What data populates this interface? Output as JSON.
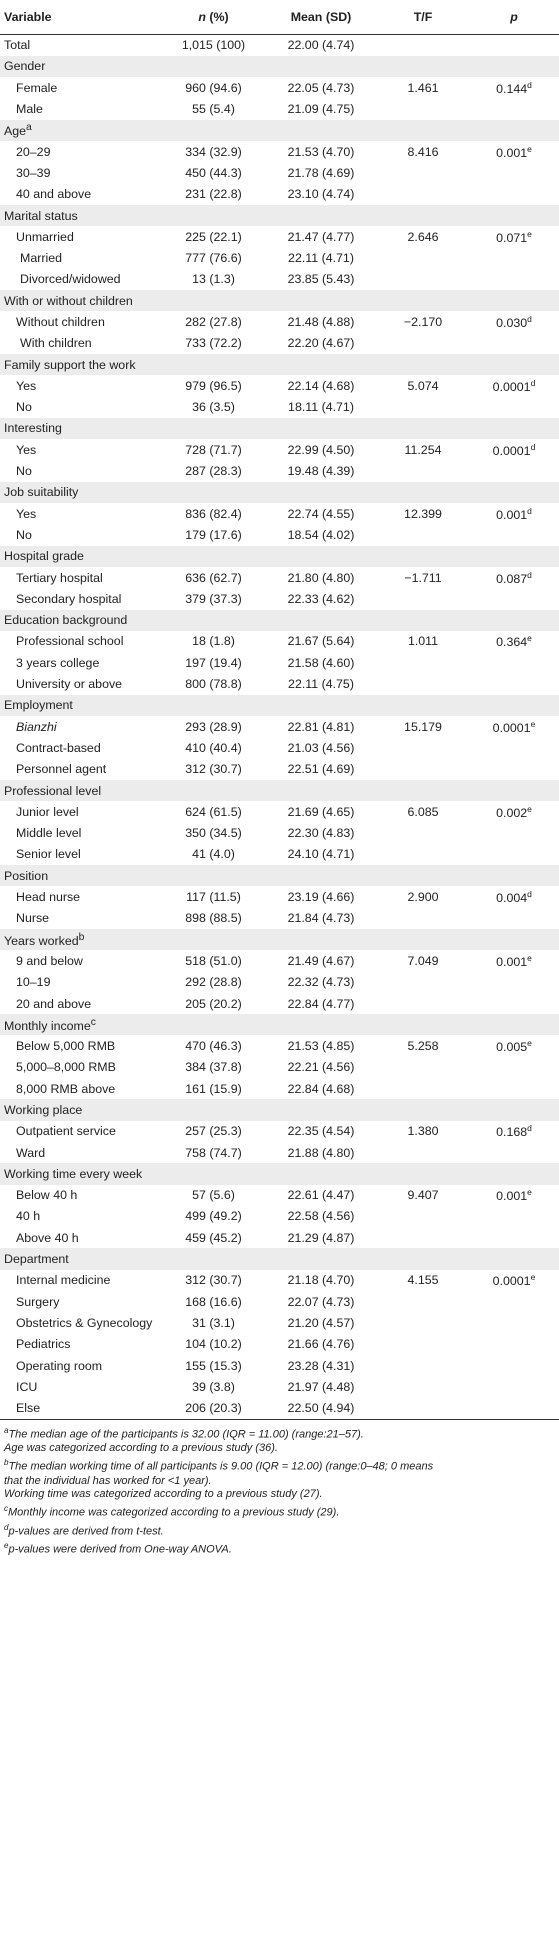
{
  "headers": [
    "Variable",
    "n (%)",
    "Mean (SD)",
    "T/F",
    "p"
  ],
  "rows": [
    {
      "label": "Total",
      "n": "1,015 (100)",
      "mean": "22.00 (4.74)",
      "tf": "",
      "p": "",
      "kind": "first"
    },
    {
      "label": "Gender",
      "kind": "group"
    },
    {
      "label": "Female",
      "n": "960 (94.6)",
      "mean": "22.05 (4.73)",
      "tf": "1.461",
      "p": "0.144",
      "sup": "d",
      "kind": "sub"
    },
    {
      "label": "Male",
      "n": "55 (5.4)",
      "mean": "21.09 (4.75)",
      "tf": "",
      "p": "",
      "kind": "sub"
    },
    {
      "label": "Age",
      "labelsup": "a",
      "kind": "group"
    },
    {
      "label": "20–29",
      "n": "334 (32.9)",
      "mean": "21.53 (4.70)",
      "tf": "8.416",
      "p": "0.001",
      "sup": "e",
      "kind": "sub"
    },
    {
      "label": "30–39",
      "n": "450 (44.3)",
      "mean": "21.78 (4.69)",
      "tf": "",
      "p": "",
      "kind": "sub"
    },
    {
      "label": "40 and above",
      "n": "231 (22.8)",
      "mean": "23.10 (4.74)",
      "tf": "",
      "p": "",
      "kind": "sub"
    },
    {
      "label": "Marital status",
      "kind": "group"
    },
    {
      "label": "Unmarried",
      "n": "225 (22.1)",
      "mean": "21.47 (4.77)",
      "tf": "2.646",
      "p": "0.071",
      "sup": "e",
      "kind": "sub"
    },
    {
      "label": "Married",
      "n": "777 (76.6)",
      "mean": "22.11 (4.71)",
      "tf": "",
      "p": "",
      "kind": "sub alt"
    },
    {
      "label": "Divorced/widowed",
      "n": "13 (1.3)",
      "mean": "23.85 (5.43)",
      "tf": "",
      "p": "",
      "kind": "sub alt"
    },
    {
      "label": "With or without children",
      "kind": "group"
    },
    {
      "label": "Without children",
      "n": "282 (27.8)",
      "mean": "21.48 (4.88)",
      "tf": "−2.170",
      "p": "0.030",
      "sup": "d",
      "kind": "sub"
    },
    {
      "label": "With children",
      "n": "733 (72.2)",
      "mean": "22.20 (4.67)",
      "tf": "",
      "p": "",
      "kind": "sub alt"
    },
    {
      "label": "Family support the work",
      "kind": "group"
    },
    {
      "label": "Yes",
      "n": "979 (96.5)",
      "mean": "22.14 (4.68)",
      "tf": "5.074",
      "p": "0.0001",
      "sup": "d",
      "kind": "sub"
    },
    {
      "label": "No",
      "n": "36 (3.5)",
      "mean": "18.11 (4.71)",
      "tf": "",
      "p": "",
      "kind": "sub"
    },
    {
      "label": "Interesting",
      "kind": "group"
    },
    {
      "label": "Yes",
      "n": "728 (71.7)",
      "mean": "22.99 (4.50)",
      "tf": "11.254",
      "p": "0.0001",
      "sup": "d",
      "kind": "sub"
    },
    {
      "label": "No",
      "n": "287 (28.3)",
      "mean": "19.48 (4.39)",
      "tf": "",
      "p": "",
      "kind": "sub"
    },
    {
      "label": "Job suitability",
      "kind": "group"
    },
    {
      "label": "Yes",
      "n": "836 (82.4)",
      "mean": "22.74 (4.55)",
      "tf": "12.399",
      "p": "0.001",
      "sup": "d",
      "kind": "sub"
    },
    {
      "label": "No",
      "n": "179 (17.6)",
      "mean": "18.54 (4.02)",
      "tf": "",
      "p": "",
      "kind": "sub"
    },
    {
      "label": "Hospital grade",
      "kind": "group"
    },
    {
      "label": "Tertiary hospital",
      "n": "636 (62.7)",
      "mean": "21.80 (4.80)",
      "tf": "−1.711",
      "p": "0.087",
      "sup": "d",
      "kind": "sub"
    },
    {
      "label": "Secondary hospital",
      "n": "379 (37.3)",
      "mean": "22.33 (4.62)",
      "tf": "",
      "p": "",
      "kind": "sub"
    },
    {
      "label": "Education background",
      "kind": "group"
    },
    {
      "label": "Professional school",
      "n": "18 (1.8)",
      "mean": "21.67 (5.64)",
      "tf": "1.011",
      "p": "0.364",
      "sup": "e",
      "kind": "sub"
    },
    {
      "label": "3 years college",
      "n": "197 (19.4)",
      "mean": "21.58 (4.60)",
      "tf": "",
      "p": "",
      "kind": "sub"
    },
    {
      "label": "University or above",
      "n": "800 (78.8)",
      "mean": "22.11 (4.75)",
      "tf": "",
      "p": "",
      "kind": "sub"
    },
    {
      "label": "Employment",
      "kind": "group"
    },
    {
      "label": "Bianzhi",
      "n": "293 (28.9)",
      "mean": "22.81 (4.81)",
      "tf": "15.179",
      "p": "0.0001",
      "sup": "e",
      "kind": "sub",
      "italic": true
    },
    {
      "label": "Contract-based",
      "n": "410 (40.4)",
      "mean": "21.03 (4.56)",
      "tf": "",
      "p": "",
      "kind": "sub"
    },
    {
      "label": "Personnel agent",
      "n": "312 (30.7)",
      "mean": "22.51 (4.69)",
      "tf": "",
      "p": "",
      "kind": "sub"
    },
    {
      "label": "Professional level",
      "kind": "group"
    },
    {
      "label": "Junior level",
      "n": "624 (61.5)",
      "mean": "21.69 (4.65)",
      "tf": "6.085",
      "p": "0.002",
      "sup": "e",
      "kind": "sub"
    },
    {
      "label": "Middle level",
      "n": "350 (34.5)",
      "mean": "22.30 (4.83)",
      "tf": "",
      "p": "",
      "kind": "sub"
    },
    {
      "label": "Senior level",
      "n": "41 (4.0)",
      "mean": "24.10 (4.71)",
      "tf": "",
      "p": "",
      "kind": "sub"
    },
    {
      "label": "Position",
      "kind": "group"
    },
    {
      "label": "Head nurse",
      "n": "117 (11.5)",
      "mean": "23.19 (4.66)",
      "tf": "2.900",
      "p": "0.004",
      "sup": "d",
      "kind": "sub"
    },
    {
      "label": "Nurse",
      "n": "898 (88.5)",
      "mean": "21.84 (4.73)",
      "tf": "",
      "p": "",
      "kind": "sub"
    },
    {
      "label": "Years worked",
      "labelsup": "b",
      "kind": "group"
    },
    {
      "label": "9 and below",
      "n": "518 (51.0)",
      "mean": "21.49 (4.67)",
      "tf": "7.049",
      "p": "0.001",
      "sup": "e",
      "kind": "sub"
    },
    {
      "label": "10–19",
      "n": "292 (28.8)",
      "mean": "22.32 (4.73)",
      "tf": "",
      "p": "",
      "kind": "sub"
    },
    {
      "label": "20 and above",
      "n": "205 (20.2)",
      "mean": "22.84 (4.77)",
      "tf": "",
      "p": "",
      "kind": "sub"
    },
    {
      "label": "Monthly income",
      "labelsup": "c",
      "kind": "group"
    },
    {
      "label": "Below 5,000 RMB",
      "n": "470 (46.3)",
      "mean": "21.53 (4.85)",
      "tf": "5.258",
      "p": "0.005",
      "sup": "e",
      "kind": "sub"
    },
    {
      "label": "5,000–8,000 RMB",
      "n": "384 (37.8)",
      "mean": "22.21 (4.56)",
      "tf": "",
      "p": "",
      "kind": "sub"
    },
    {
      "label": "8,000 RMB above",
      "n": "161 (15.9)",
      "mean": "22.84 (4.68)",
      "tf": "",
      "p": "",
      "kind": "sub"
    },
    {
      "label": "Working place",
      "kind": "group"
    },
    {
      "label": "Outpatient service",
      "n": "257 (25.3)",
      "mean": "22.35 (4.54)",
      "tf": "1.380",
      "p": "0.168",
      "sup": "d",
      "kind": "sub"
    },
    {
      "label": "Ward",
      "n": "758 (74.7)",
      "mean": "21.88 (4.80)",
      "tf": "",
      "p": "",
      "kind": "sub"
    },
    {
      "label": "Working time every week",
      "kind": "group"
    },
    {
      "label": "Below 40 h",
      "n": "57 (5.6)",
      "mean": "22.61 (4.47)",
      "tf": "9.407",
      "p": "0.001",
      "sup": "e",
      "kind": "sub"
    },
    {
      "label": "40 h",
      "n": "499 (49.2)",
      "mean": "22.58 (4.56)",
      "tf": "",
      "p": "",
      "kind": "sub"
    },
    {
      "label": "Above 40 h",
      "n": "459 (45.2)",
      "mean": "21.29 (4.87)",
      "tf": "",
      "p": "",
      "kind": "sub"
    },
    {
      "label": "Department",
      "kind": "group"
    },
    {
      "label": "Internal medicine",
      "n": "312 (30.7)",
      "mean": "21.18 (4.70)",
      "tf": "4.155",
      "p": "0.0001",
      "sup": "e",
      "kind": "sub"
    },
    {
      "label": "Surgery",
      "n": "168 (16.6)",
      "mean": "22.07 (4.73)",
      "tf": "",
      "p": "",
      "kind": "sub"
    },
    {
      "label": "Obstetrics & Gynecology",
      "n": "31 (3.1)",
      "mean": "21.20 (4.57)",
      "tf": "",
      "p": "",
      "kind": "sub"
    },
    {
      "label": "Pediatrics",
      "n": "104 (10.2)",
      "mean": "21.66 (4.76)",
      "tf": "",
      "p": "",
      "kind": "sub"
    },
    {
      "label": "Operating room",
      "n": "155 (15.3)",
      "mean": "23.28 (4.31)",
      "tf": "",
      "p": "",
      "kind": "sub"
    },
    {
      "label": "ICU",
      "n": "39 (3.8)",
      "mean": "21.97 (4.48)",
      "tf": "",
      "p": "",
      "kind": "sub"
    },
    {
      "label": "Else",
      "n": "206 (20.3)",
      "mean": "22.50 (4.94)",
      "tf": "",
      "p": "",
      "kind": "sub"
    }
  ],
  "footnotes": [
    {
      "sup": "a",
      "text": "The median age of the participants is 32.00 (IQR = 11.00) (range:21–57)."
    },
    {
      "sup": "",
      "text": "Age was categorized according to a previous study (36)."
    },
    {
      "sup": "b",
      "text": "The median working time of all participants is 9.00 (IQR = 12.00) (range:0–48; 0 means"
    },
    {
      "sup": "",
      "text": "that the individual has worked for <1 year)."
    },
    {
      "sup": "",
      "text": "Working time was categorized according to a previous study (27)."
    },
    {
      "sup": "c",
      "text": "Monthly income was categorized according to a previous study (29)."
    },
    {
      "sup": "d",
      "text": "p-values are derived from t-test."
    },
    {
      "sup": "e",
      "text": "p-values were derived from One-way ANOVA."
    }
  ]
}
